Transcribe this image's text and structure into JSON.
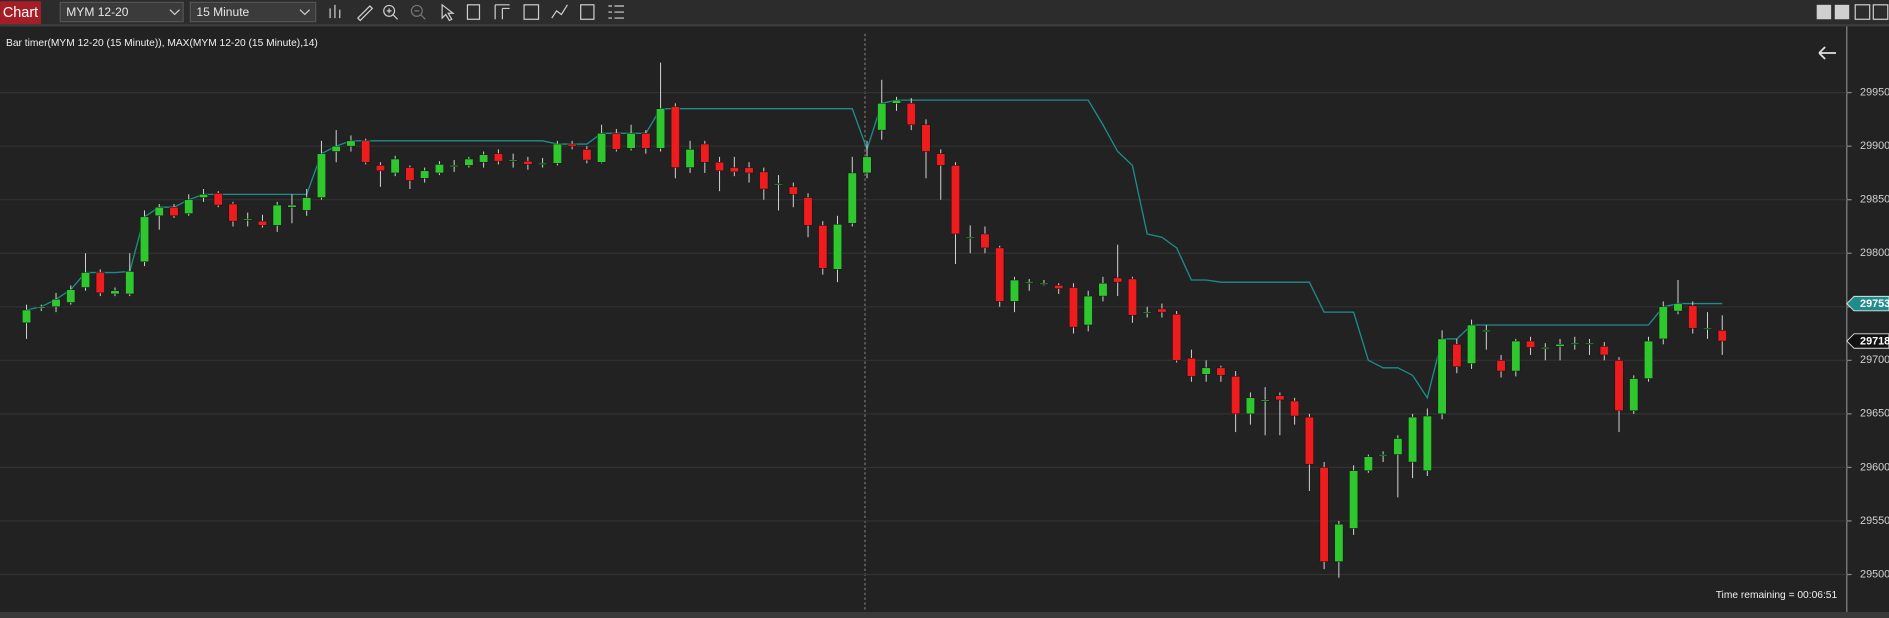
{
  "toolbar": {
    "label": "Chart",
    "instrument": "MYM 12-20",
    "interval": "15 Minute"
  },
  "chart_data": {
    "type": "candlestick",
    "title": "Bar timer(MYM 12-20 (15 Minute)), MAX(MYM 12-20 (15 Minute),14)",
    "annotation": "Time remaining = 00:06:51",
    "ylim": [
      29465,
      30005
    ],
    "yticks": [
      29500,
      29550,
      29600,
      29650,
      29700,
      29750,
      29800,
      29850,
      29900,
      29950
    ],
    "grid": true,
    "up_color": "#2ec82e",
    "down_color": "#ee1c1c",
    "wick_color": "#d8d8d8",
    "open": [
      29735,
      29750,
      29750,
      29754,
      29768,
      29782,
      29762,
      29762,
      29792,
      29835,
      29843,
      29837,
      29852,
      29856,
      29846,
      29832,
      29830,
      29826,
      29843,
      29840,
      29852,
      29895,
      29900,
      29905,
      29882,
      29875,
      29880,
      29870,
      29875,
      29882,
      29882,
      29885,
      29893,
      29887,
      29886,
      29884,
      29884,
      29902,
      29897,
      29885,
      29912,
      29898,
      29912,
      29898,
      29937,
      29880,
      29902,
      29885,
      29880,
      29880,
      29876,
      29865,
      29862,
      29852,
      29826,
      29785,
      29828,
      29875,
      29915,
      29940,
      29940,
      29920,
      29893,
      29882,
      29815,
      29818,
      29805,
      29755,
      29773,
      29772,
      29770,
      29768,
      29733,
      29760,
      29777,
      29776,
      29745,
      29748,
      29743,
      29702,
      29687,
      29693,
      29685,
      29650,
      29663,
      29667,
      29662,
      29647,
      29600,
      29512,
      29543,
      29597,
      29612,
      29612,
      29605,
      29597,
      29650,
      29715,
      29697,
      29728,
      29700,
      29690,
      29718,
      29712,
      29713,
      29716,
      29716,
      29713,
      29700,
      29653,
      29683,
      29720,
      29746,
      29751,
      29730,
      29728
    ],
    "high": [
      29752,
      29752,
      29763,
      29770,
      29800,
      29785,
      29768,
      29800,
      29840,
      29846,
      29846,
      29855,
      29860,
      29858,
      29848,
      29838,
      29836,
      29848,
      29855,
      29860,
      29905,
      29915,
      29910,
      29907,
      29885,
      29891,
      29882,
      29880,
      29886,
      29887,
      29890,
      29895,
      29897,
      29893,
      29890,
      29889,
      29905,
      29905,
      29900,
      29920,
      29916,
      29920,
      29915,
      29978,
      29940,
      29905,
      29905,
      29890,
      29890,
      29885,
      29880,
      29873,
      29866,
      29856,
      29830,
      29835,
      29890,
      29905,
      29962,
      29946,
      29945,
      29925,
      29897,
      29885,
      29826,
      29825,
      29807,
      29778,
      29776,
      29775,
      29772,
      29772,
      29765,
      29778,
      29808,
      29778,
      29750,
      29753,
      29746,
      29710,
      29700,
      29695,
      29690,
      29670,
      29675,
      29670,
      29665,
      29650,
      29605,
      29550,
      29602,
      29612,
      29615,
      29630,
      29650,
      29655,
      29728,
      29720,
      29738,
      29733,
      29705,
      29720,
      29722,
      29716,
      29720,
      29722,
      29720,
      29717,
      29703,
      29686,
      29722,
      29755,
      29775,
      29755,
      29745,
      29742
    ],
    "low": [
      29720,
      29746,
      29745,
      29752,
      29765,
      29760,
      29760,
      29760,
      29788,
      29822,
      29833,
      29835,
      29848,
      29843,
      29825,
      29825,
      29824,
      29820,
      29828,
      29835,
      29850,
      29885,
      29895,
      29883,
      29862,
      29872,
      29860,
      29866,
      29873,
      29876,
      29880,
      29880,
      29883,
      29880,
      29878,
      29880,
      29882,
      29897,
      29884,
      29884,
      29895,
      29896,
      29893,
      29895,
      29870,
      29875,
      29875,
      29858,
      29872,
      29866,
      29850,
      29840,
      29843,
      29815,
      29780,
      29773,
      29825,
      29870,
      29906,
      29933,
      29915,
      29870,
      29850,
      29790,
      29800,
      29800,
      29750,
      29745,
      29765,
      29770,
      29762,
      29725,
      29727,
      29755,
      29760,
      29735,
      29740,
      29740,
      29698,
      29680,
      29680,
      29680,
      29633,
      29640,
      29630,
      29630,
      29640,
      29578,
      29505,
      29497,
      29537,
      29595,
      29605,
      29572,
      29590,
      29592,
      29645,
      29688,
      29692,
      29710,
      29684,
      29685,
      29705,
      29700,
      29700,
      29710,
      29705,
      29700,
      29633,
      29650,
      29680,
      29715,
      29743,
      29725,
      29720,
      29705
    ],
    "close": [
      29747,
      29750,
      29757,
      29766,
      29782,
      29763,
      29765,
      29783,
      29834,
      29843,
      29835,
      29850,
      29855,
      29845,
      29830,
      29832,
      29826,
      29845,
      29845,
      29852,
      29893,
      29900,
      29905,
      29885,
      29877,
      29888,
      29868,
      29877,
      29883,
      29882,
      29888,
      29892,
      29886,
      29887,
      29883,
      29884,
      29902,
      29900,
      29887,
      29912,
      29897,
      29912,
      29898,
      29935,
      29880,
      29897,
      29885,
      29877,
      29876,
      29875,
      29860,
      29865,
      29855,
      29826,
      29786,
      29827,
      29875,
      29890,
      29940,
      29943,
      29920,
      29895,
      29882,
      29818,
      29815,
      29805,
      29755,
      29775,
      29773,
      29772,
      29767,
      29731,
      29760,
      29772,
      29773,
      29742,
      29745,
      29745,
      29700,
      29685,
      29693,
      29686,
      29650,
      29665,
      29663,
      29663,
      29648,
      29603,
      29512,
      29547,
      29597,
      29610,
      29612,
      29627,
      29647,
      29648,
      29720,
      29694,
      29733,
      29728,
      29690,
      29718,
      29712,
      29712,
      29715,
      29716,
      29716,
      29705,
      29653,
      29683,
      29718,
      29750,
      29753,
      29730,
      29730,
      29718
    ],
    "line": {
      "color": "#1f8c8c",
      "values": [
        29747,
        29750,
        29757,
        29766,
        29782,
        29782,
        29782,
        29783,
        29834,
        29843,
        29843,
        29850,
        29855,
        29855,
        29855,
        29855,
        29855,
        29855,
        29855,
        29855,
        29893,
        29900,
        29905,
        29905,
        29905,
        29905,
        29905,
        29905,
        29905,
        29905,
        29905,
        29905,
        29905,
        29905,
        29905,
        29905,
        29902,
        29902,
        29902,
        29912,
        29912,
        29912,
        29912,
        29935,
        29935,
        29935,
        29935,
        29935,
        29935,
        29935,
        29935,
        29935,
        29935,
        29935,
        29935,
        29935,
        29935,
        29897,
        29940,
        29943,
        29943,
        29943,
        29943,
        29943,
        29943,
        29943,
        29943,
        29943,
        29943,
        29943,
        29943,
        29943,
        29943,
        29920,
        29895,
        29882,
        29818,
        29815,
        29805,
        29775,
        29775,
        29773,
        29773,
        29773,
        29773,
        29773,
        29773,
        29773,
        29745,
        29745,
        29745,
        29700,
        29693,
        29693,
        29686,
        29665,
        29720,
        29720,
        29733,
        29733,
        29733,
        29733,
        29733,
        29733,
        29733,
        29733,
        29733,
        29733,
        29733,
        29733,
        29733,
        29750,
        29753,
        29753,
        29753,
        29753
      ]
    },
    "price_markers": [
      {
        "value": 29753,
        "color": "#1f8c8c"
      },
      {
        "value": 29718,
        "color": "#111111"
      }
    ]
  }
}
